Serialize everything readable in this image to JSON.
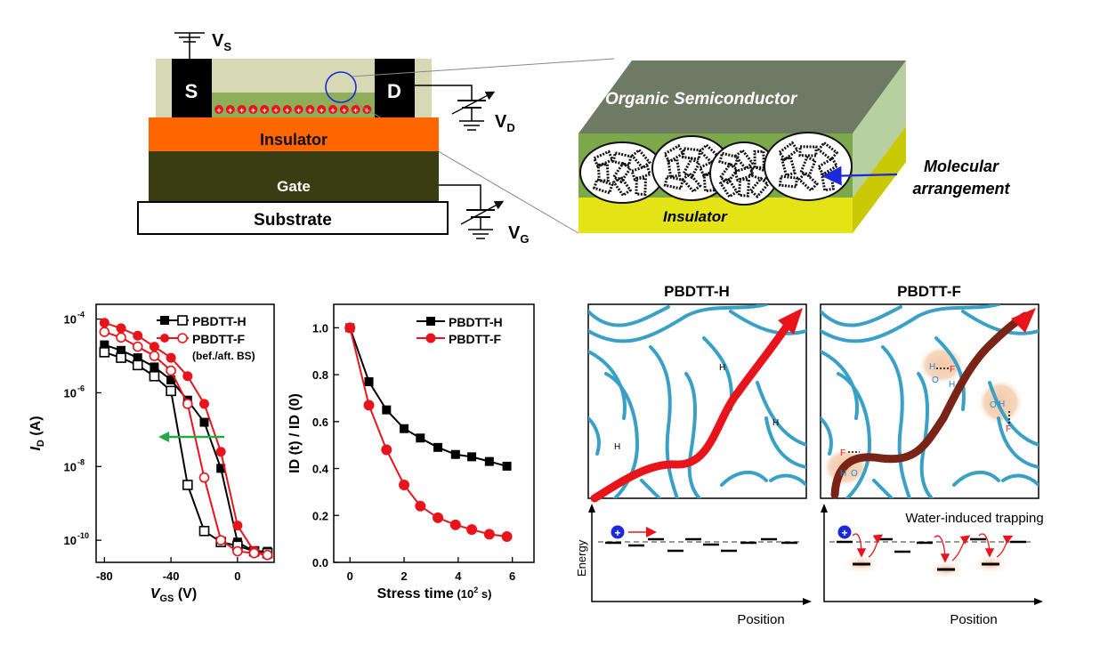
{
  "device": {
    "source": "S",
    "drain": "D",
    "vs_main": "V",
    "vs_sub": "S",
    "vd_main": "V",
    "vd_sub": "D",
    "vg_main": "V",
    "vg_sub": "G",
    "insulator": "Insulator",
    "gate": "Gate",
    "substrate": "Substrate"
  },
  "zoom_block": {
    "semiconductor": "Organic Semiconductor",
    "insulator": "Insulator",
    "arrow_label_line1": "Molecular",
    "arrow_label_line2": "arrangement"
  },
  "colors": {
    "semiconductor_film": "#d6d9b4",
    "channel": "#8fae5a",
    "insulator_orange": "#ff6600",
    "gate_dark": "#3a3c12",
    "series_h": "#000000",
    "series_f": "#e8141c",
    "chain": "#3aa0c6",
    "pathway": "#e8141c",
    "green_arrow": "#22aa44"
  },
  "chart_data": [
    {
      "type": "line",
      "xlabel_main": "V",
      "xlabel_sub": "GS",
      "xlabel_unit": " (V)",
      "ylabel_main": "I",
      "ylabel_sub": "D",
      "ylabel_unit": " (A)",
      "xlim": [
        -85,
        22
      ],
      "ylim_log10": [
        -10.6,
        -3.6
      ],
      "yscale": "log",
      "xticks": [
        "-80",
        "-40",
        "0"
      ],
      "xtick_values": [
        -80,
        -40,
        0
      ],
      "yticks": [
        "10",
        "10",
        "10",
        "10"
      ],
      "ytick_exps": [
        "-4",
        "-6",
        "-8",
        "-10"
      ],
      "ytick_values": [
        -4,
        -6,
        -8,
        -10
      ],
      "legend": [
        "PBDTT-H",
        "PBDTT-F",
        "(bef./aft. BS)"
      ],
      "series": [
        {
          "name": "PBDTT-H",
          "marker": "filled-square",
          "color": "#000000",
          "x": [
            -80,
            -70,
            -60,
            -50,
            -40,
            -30,
            -20,
            -10,
            0,
            10,
            18
          ],
          "log10y": [
            -4.7,
            -4.85,
            -5.05,
            -5.3,
            -5.65,
            -6.2,
            -6.8,
            -8.05,
            -10.05,
            -10.3,
            -10.3
          ]
        },
        {
          "name": "PBDTT-H",
          "marker": "open-square",
          "color": "#000000",
          "x": [
            -80,
            -70,
            -60,
            -50,
            -40,
            -30,
            -20,
            -10,
            0,
            10,
            18
          ],
          "log10y": [
            -4.9,
            -5.05,
            -5.25,
            -5.55,
            -5.95,
            -8.5,
            -9.75,
            -10.05,
            -10.15,
            -10.3,
            -10.35
          ]
        },
        {
          "name": "PBDTT-F",
          "marker": "filled-circle",
          "color": "#e8141c",
          "x": [
            -80,
            -70,
            -60,
            -50,
            -40,
            -30,
            -20,
            -10,
            0,
            10,
            18
          ],
          "log10y": [
            -4.1,
            -4.25,
            -4.45,
            -4.75,
            -5.05,
            -5.55,
            -6.3,
            -7.6,
            -9.6,
            -10.3,
            -10.4
          ]
        },
        {
          "name": "PBDTT-F",
          "marker": "open-circle",
          "color": "#e8141c",
          "x": [
            -80,
            -70,
            -60,
            -50,
            -40,
            -30,
            -20,
            -10,
            0,
            10,
            18
          ],
          "log10y": [
            -4.35,
            -4.5,
            -4.75,
            -5.0,
            -5.4,
            -6.3,
            -8.3,
            -10.0,
            -10.3,
            -10.35,
            -10.4
          ]
        }
      ]
    },
    {
      "type": "line",
      "xlabel_main": "Stress time",
      "xlabel_unit": " (10",
      "xlabel_exp": "2",
      "xlabel_tail": " s)",
      "ylabel": "ID (t) / ID (0)",
      "xlim": [
        -0.6,
        6.8
      ],
      "ylim": [
        0,
        1.1
      ],
      "xticks": [
        "0",
        "2",
        "4",
        "6"
      ],
      "xtick_values": [
        0,
        2,
        4,
        6
      ],
      "yticks": [
        "0.0",
        "0.2",
        "0.4",
        "0.6",
        "0.8",
        "1.0"
      ],
      "ytick_values": [
        0,
        0.2,
        0.4,
        0.6,
        0.8,
        1.0
      ],
      "legend": [
        "PBDTT-H",
        "PBDTT-F"
      ],
      "series": [
        {
          "name": "PBDTT-H",
          "marker": "filled-square",
          "color": "#000000",
          "x": [
            0,
            0.7,
            1.35,
            2.0,
            2.6,
            3.25,
            3.9,
            4.5,
            5.15,
            5.8
          ],
          "y": [
            1.0,
            0.77,
            0.65,
            0.57,
            0.53,
            0.49,
            0.46,
            0.45,
            0.43,
            0.41
          ]
        },
        {
          "name": "PBDTT-F",
          "marker": "filled-circle",
          "color": "#e8141c",
          "x": [
            0,
            0.7,
            1.35,
            2.0,
            2.6,
            3.25,
            3.9,
            4.5,
            5.15,
            5.8
          ],
          "y": [
            1.0,
            0.67,
            0.48,
            0.33,
            0.24,
            0.19,
            0.16,
            0.14,
            0.12,
            0.11
          ]
        }
      ]
    }
  ],
  "morphology": {
    "title_h": "PBDTT-H",
    "title_f": "PBDTT-F",
    "h_atom": "H",
    "f_atom": "F",
    "o_atom": "O",
    "energy_axis": "Energy",
    "position_axis": "Position",
    "trap_label": "Water-induced trapping",
    "hole_symbol": "+"
  }
}
